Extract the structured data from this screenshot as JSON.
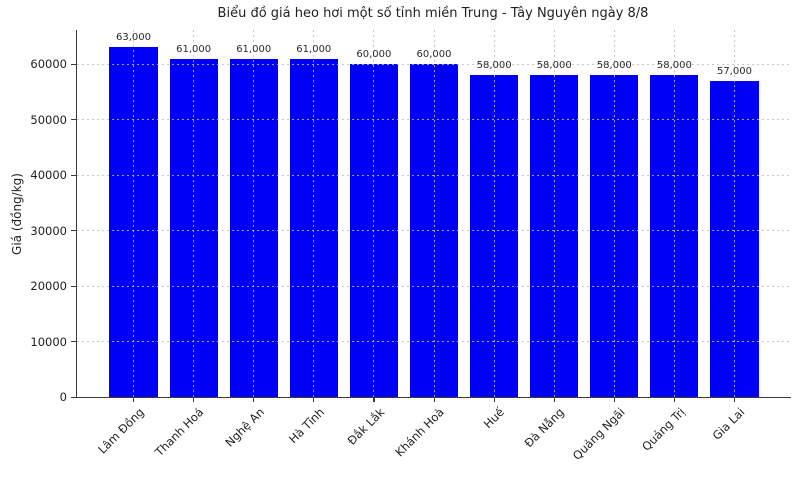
{
  "title": "Biểu đồ giá heo hơi một số tỉnh miền Trung - Tây Nguyên ngày 8/8",
  "chart_data": {
    "type": "bar",
    "title": "Biểu đồ giá heo hơi một số tỉnh miền Trung - Tây Nguyên ngày 8/8",
    "xlabel": "",
    "ylabel": "Giá (đồng/kg)",
    "categories": [
      "Lâm Đồng",
      "Thanh Hoá",
      "Nghệ An",
      "Hà Tĩnh",
      "Đắk Lắk",
      "Khánh Hoà",
      "Huế",
      "Đà Nẵng",
      "Quảng Ngãi",
      "Quảng Trị",
      "Gia Lai"
    ],
    "values": [
      63000,
      61000,
      61000,
      61000,
      60000,
      60000,
      58000,
      58000,
      58000,
      58000,
      57000
    ],
    "value_labels": [
      "63,000",
      "61,000",
      "61,000",
      "61,000",
      "60,000",
      "60,000",
      "58,000",
      "58,000",
      "58,000",
      "58,000",
      "57,000"
    ],
    "yticks": [
      0,
      10000,
      20000,
      30000,
      40000,
      50000,
      60000
    ],
    "ytick_labels": [
      "0",
      "10000",
      "20000",
      "30000",
      "40000",
      "50000",
      "60000"
    ],
    "ylim": [
      0,
      66150
    ],
    "grid": true,
    "legend": null,
    "bar_color": "#0000f7",
    "grid_color": "#bebebe",
    "axis_color": "#3a3a3a",
    "text_color": "#1f1f1f"
  }
}
